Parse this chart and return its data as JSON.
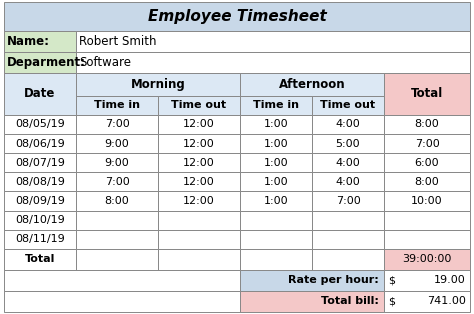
{
  "title": "Employee Timesheet",
  "name_label": "Name:",
  "name_value": "Robert Smith",
  "dept_label": "Deparment:",
  "dept_value": "Software",
  "col_headers_row1": [
    "Date",
    "Morning",
    "",
    "Afternoon",
    "",
    "Total"
  ],
  "col_headers_row2": [
    "",
    "Time in",
    "Time out",
    "Time in",
    "Time out",
    ""
  ],
  "rows": [
    [
      "08/05/19",
      "7:00",
      "12:00",
      "1:00",
      "4:00",
      "8:00"
    ],
    [
      "08/06/19",
      "9:00",
      "12:00",
      "1:00",
      "5:00",
      "7:00"
    ],
    [
      "08/07/19",
      "9:00",
      "12:00",
      "1:00",
      "4:00",
      "6:00"
    ],
    [
      "08/08/19",
      "7:00",
      "12:00",
      "1:00",
      "4:00",
      "8:00"
    ],
    [
      "08/09/19",
      "8:00",
      "12:00",
      "1:00",
      "7:00",
      "10:00"
    ],
    [
      "08/10/19",
      "",
      "",
      "",
      "",
      ""
    ],
    [
      "08/11/19",
      "",
      "",
      "",
      "",
      ""
    ]
  ],
  "total_row": [
    "Total",
    "",
    "",
    "",
    "",
    "39:00:00"
  ],
  "rate_label": "Rate per hour:",
  "rate_symbol": "$",
  "rate_value": "19.00",
  "bill_label": "Total bill:",
  "bill_symbol": "$",
  "bill_value": "741.00",
  "color_title_bg": "#c8d8e8",
  "color_name_label_bg": "#d4e8c8",
  "color_dept_label_bg": "#d4e8c8",
  "color_info_bg": "#ffffff",
  "color_morning_bg": "#dce8f4",
  "color_afternoon_bg": "#dce8f4",
  "color_total_header_bg": "#f4c8c8",
  "color_data_row_bg": "#ffffff",
  "color_total_row_bg": "#ffffff",
  "color_total_cell_bg": "#f4c8c8",
  "color_rate_label_bg": "#c8d8e8",
  "color_rate_value_bg": "#ffffff",
  "color_bill_label_bg": "#f4c8c8",
  "color_bill_value_bg": "#ffffff",
  "color_border": "#888888",
  "color_text": "#000000"
}
